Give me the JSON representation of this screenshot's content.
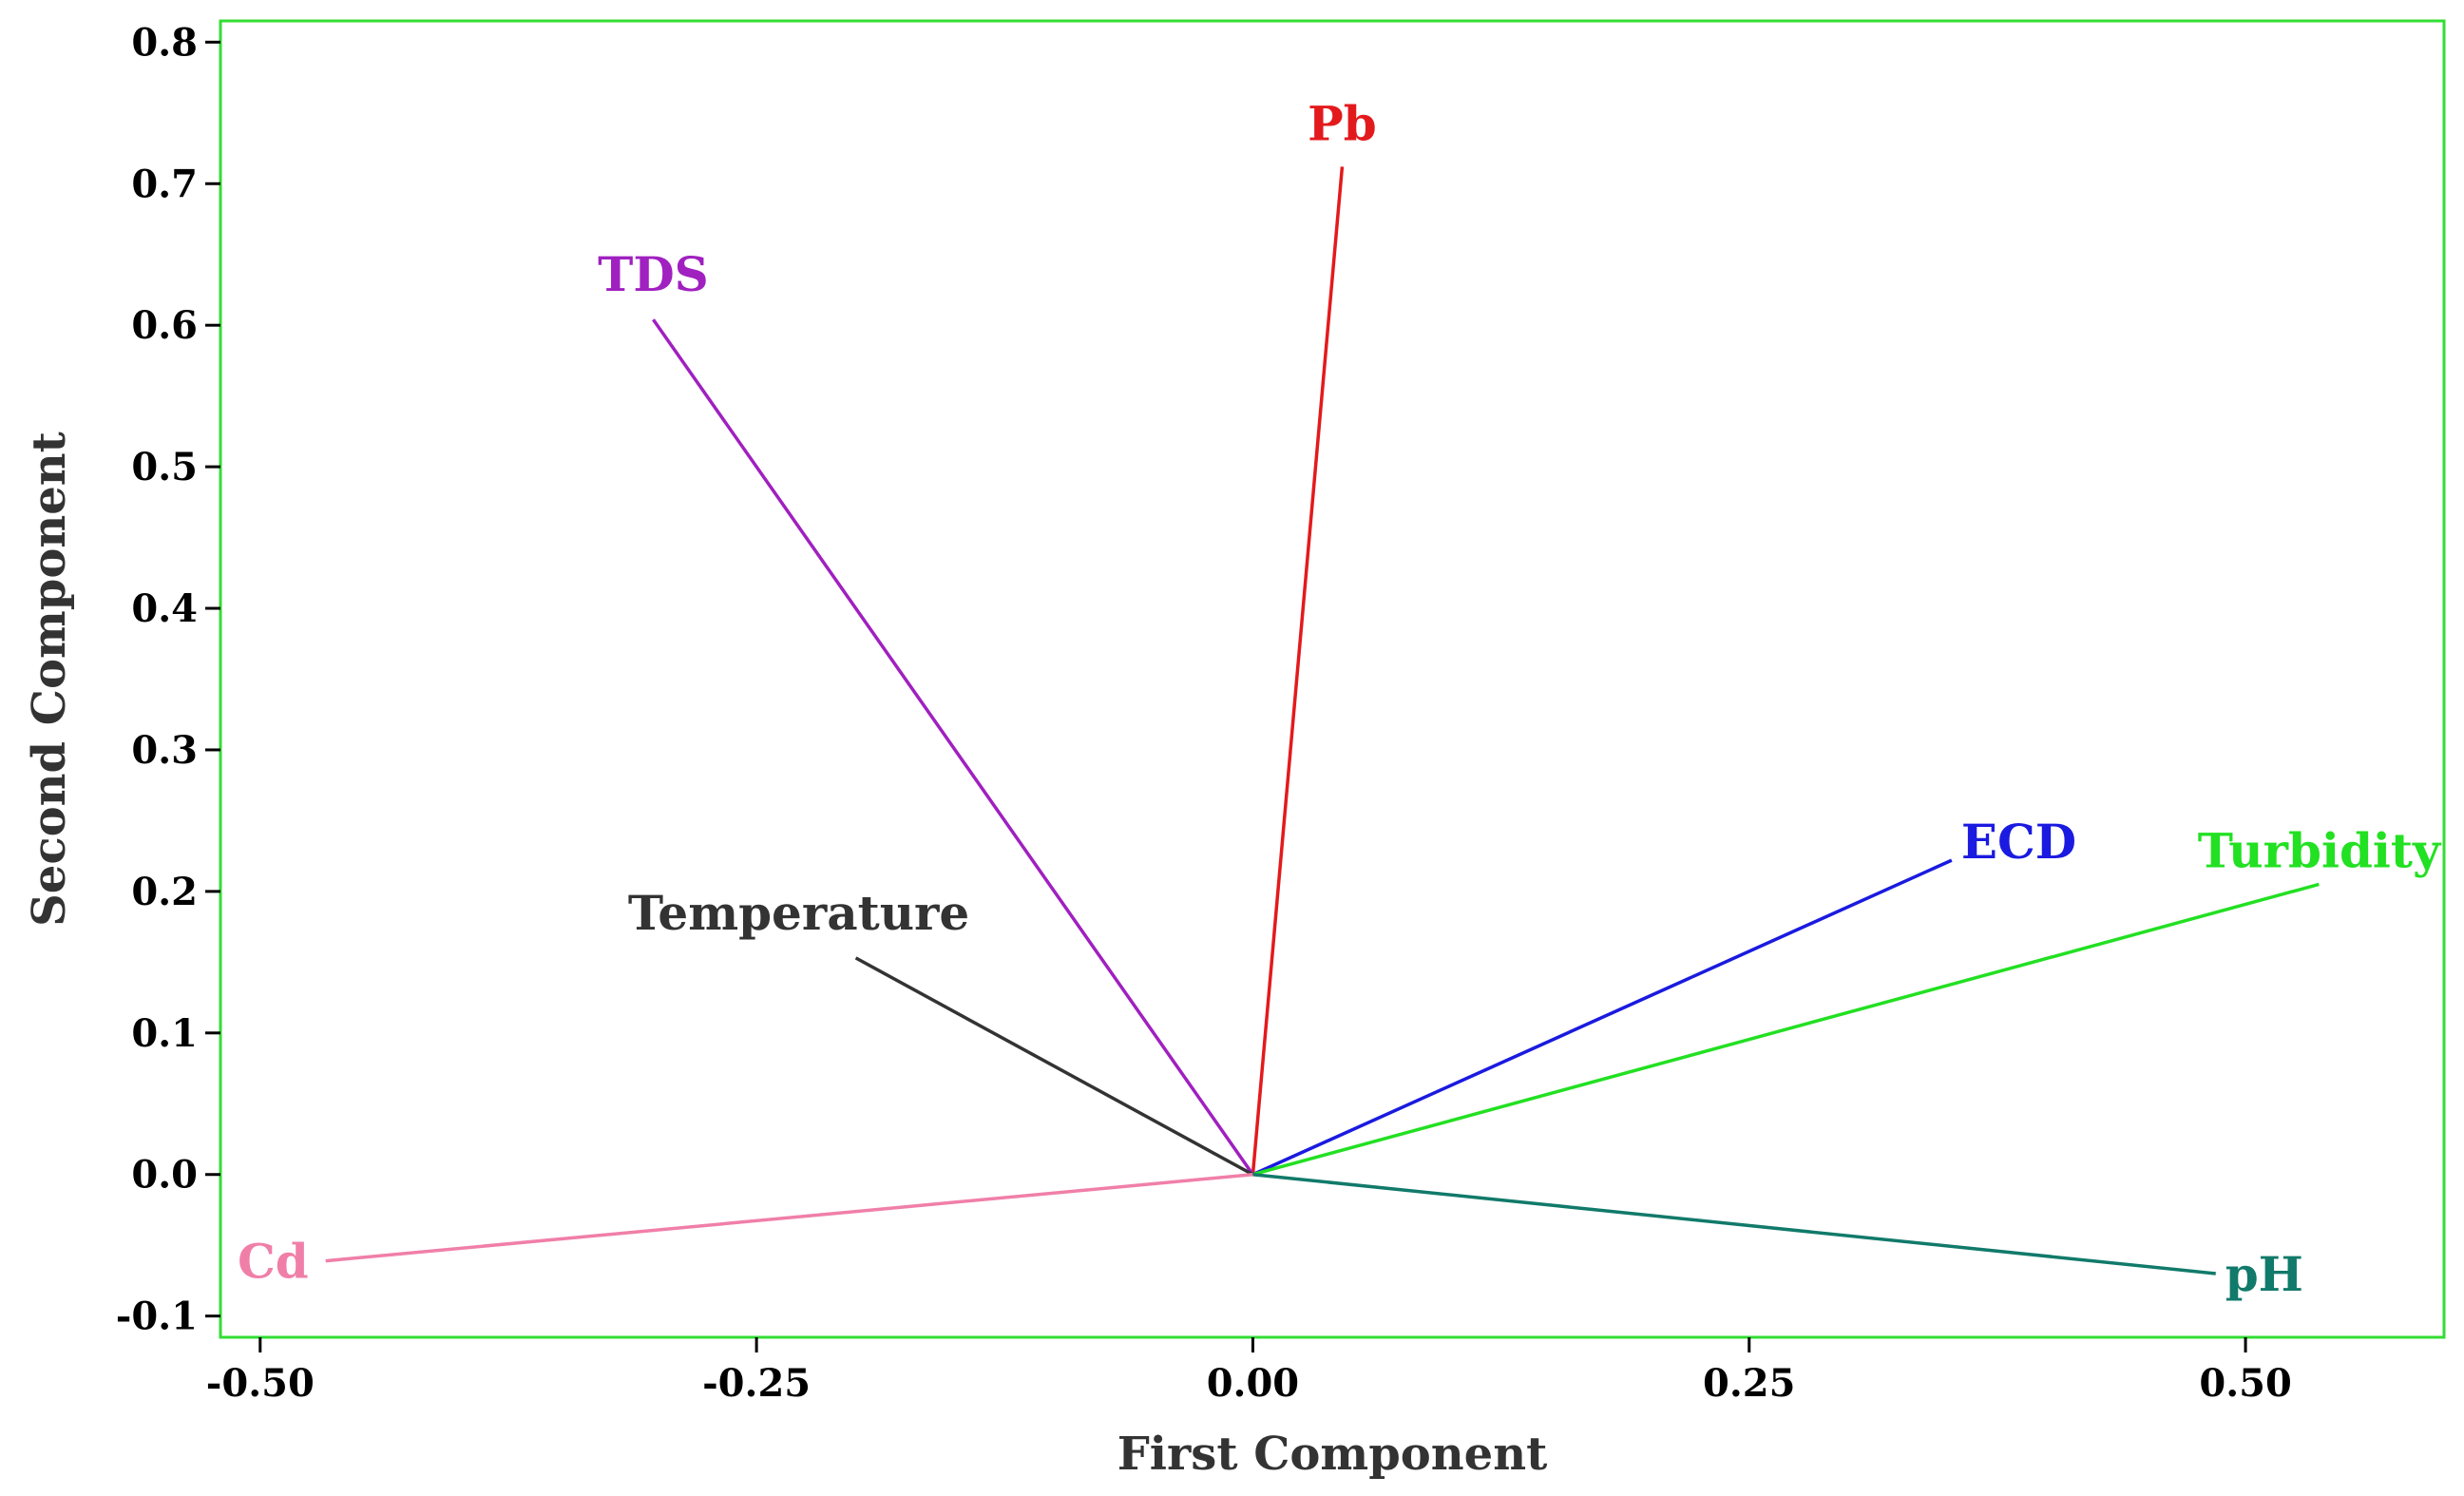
{
  "chart_data": {
    "type": "loading-plot",
    "title": "",
    "xlabel": "First Component",
    "ylabel": "Second Component",
    "xlim": [
      -0.52,
      0.6
    ],
    "ylim": [
      -0.115,
      0.815
    ],
    "xticks": [
      -0.5,
      -0.25,
      0.0,
      0.25,
      0.5
    ],
    "xtick_labels": [
      "-0.50",
      "-0.25",
      "0.00",
      "0.25",
      "0.50"
    ],
    "yticks": [
      -0.1,
      0.0,
      0.1,
      0.2,
      0.3,
      0.4,
      0.5,
      0.6,
      0.7,
      0.8
    ],
    "ytick_labels": [
      "-0.1",
      "0.0",
      "0.1",
      "0.2",
      "0.3",
      "0.4",
      "0.5",
      "0.6",
      "0.7",
      "0.8"
    ],
    "frame_color": "#33dd33",
    "grid": false,
    "vectors": [
      {
        "name": "Pb",
        "x": 0.045,
        "y": 0.712,
        "color": "#e31a1c"
      },
      {
        "name": "TDS",
        "x": -0.302,
        "y": 0.604,
        "color": "#a020c0"
      },
      {
        "name": "ECD",
        "x": 0.352,
        "y": 0.222,
        "color": "#1a1ae0"
      },
      {
        "name": "Turbidity",
        "x": 0.537,
        "y": 0.205,
        "color": "#22e022"
      },
      {
        "name": "Temperature",
        "x": -0.2,
        "y": 0.153,
        "color": "#333333"
      },
      {
        "name": "Cd",
        "x": -0.467,
        "y": -0.061,
        "color": "#f07fa8"
      },
      {
        "name": "pH",
        "x": 0.485,
        "y": -0.07,
        "color": "#117a6a"
      }
    ]
  }
}
